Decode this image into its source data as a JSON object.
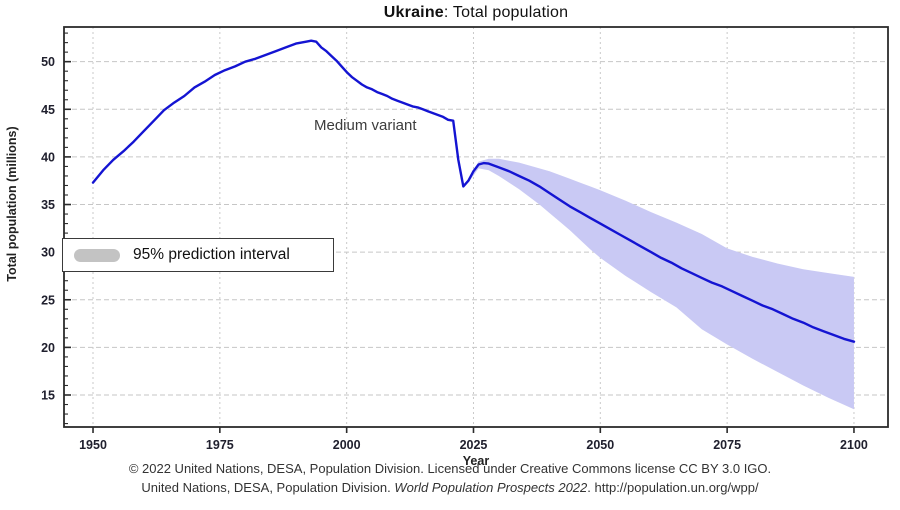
{
  "chart_data": {
    "type": "line",
    "title": {
      "bold": "Ukraine",
      "rest": ": Total population"
    },
    "xlabel": "Year",
    "ylabel": "Total population (millions)",
    "annotation": "Medium variant",
    "legend": {
      "label": "95% prediction interval",
      "swatch_color": "#c3c3c3",
      "position": "middle-left",
      "border": true
    },
    "grid": true,
    "x_axis": {
      "ticks": [
        1950,
        1975,
        2000,
        2025,
        2050,
        2075,
        2100
      ],
      "range": [
        1944.28,
        2106.71
      ],
      "minor_step": null
    },
    "y_axis": {
      "ticks": [
        15,
        20,
        25,
        30,
        35,
        40,
        45,
        50
      ],
      "range": [
        11.64,
        53.64
      ],
      "minor_step": 1
    },
    "series": [
      {
        "name": "Medium variant (total population, millions)",
        "points": [
          [
            1950,
            37.3
          ],
          [
            1952,
            38.6
          ],
          [
            1954,
            39.7
          ],
          [
            1956,
            40.6
          ],
          [
            1958,
            41.6
          ],
          [
            1960,
            42.7
          ],
          [
            1962,
            43.8
          ],
          [
            1964,
            44.9
          ],
          [
            1966,
            45.7
          ],
          [
            1968,
            46.4
          ],
          [
            1970,
            47.3
          ],
          [
            1972,
            47.9
          ],
          [
            1974,
            48.6
          ],
          [
            1976,
            49.1
          ],
          [
            1978,
            49.5
          ],
          [
            1980,
            50.0
          ],
          [
            1982,
            50.3
          ],
          [
            1984,
            50.7
          ],
          [
            1986,
            51.1
          ],
          [
            1988,
            51.5
          ],
          [
            1990,
            51.9
          ],
          [
            1992,
            52.1
          ],
          [
            1993,
            52.2
          ],
          [
            1994,
            52.1
          ],
          [
            1995,
            51.5
          ],
          [
            1996,
            51.1
          ],
          [
            1997,
            50.6
          ],
          [
            1998,
            50.1
          ],
          [
            1999,
            49.5
          ],
          [
            2000,
            48.9
          ],
          [
            2001,
            48.4
          ],
          [
            2002,
            48.0
          ],
          [
            2003,
            47.6
          ],
          [
            2004,
            47.3
          ],
          [
            2005,
            47.1
          ],
          [
            2006,
            46.8
          ],
          [
            2007,
            46.6
          ],
          [
            2008,
            46.4
          ],
          [
            2009,
            46.1
          ],
          [
            2010,
            45.9
          ],
          [
            2011,
            45.7
          ],
          [
            2012,
            45.5
          ],
          [
            2013,
            45.3
          ],
          [
            2014,
            45.2
          ],
          [
            2015,
            45.0
          ],
          [
            2016,
            44.8
          ],
          [
            2017,
            44.6
          ],
          [
            2018,
            44.4
          ],
          [
            2019,
            44.2
          ],
          [
            2020,
            43.9
          ],
          [
            2021,
            43.8
          ],
          [
            2022,
            39.7
          ],
          [
            2023,
            36.9
          ],
          [
            2024,
            37.5
          ],
          [
            2025,
            38.5
          ],
          [
            2026,
            39.2
          ],
          [
            2027,
            39.35
          ],
          [
            2028,
            39.3
          ],
          [
            2029,
            39.1
          ],
          [
            2030,
            38.9
          ],
          [
            2032,
            38.5
          ],
          [
            2034,
            38.0
          ],
          [
            2036,
            37.5
          ],
          [
            2038,
            36.9
          ],
          [
            2040,
            36.2
          ],
          [
            2042,
            35.5
          ],
          [
            2044,
            34.8
          ],
          [
            2046,
            34.2
          ],
          [
            2048,
            33.6
          ],
          [
            2050,
            33.0
          ],
          [
            2052,
            32.4
          ],
          [
            2054,
            31.8
          ],
          [
            2056,
            31.2
          ],
          [
            2058,
            30.6
          ],
          [
            2060,
            30.0
          ],
          [
            2062,
            29.4
          ],
          [
            2064,
            28.9
          ],
          [
            2066,
            28.3
          ],
          [
            2068,
            27.8
          ],
          [
            2070,
            27.3
          ],
          [
            2072,
            26.8
          ],
          [
            2074,
            26.4
          ],
          [
            2076,
            25.9
          ],
          [
            2078,
            25.4
          ],
          [
            2080,
            24.9
          ],
          [
            2082,
            24.4
          ],
          [
            2084,
            24.0
          ],
          [
            2086,
            23.5
          ],
          [
            2088,
            23.0
          ],
          [
            2090,
            22.6
          ],
          [
            2092,
            22.1
          ],
          [
            2094,
            21.7
          ],
          [
            2096,
            21.3
          ],
          [
            2098,
            20.9
          ],
          [
            2100,
            20.6
          ]
        ]
      }
    ],
    "band": {
      "name": "95% prediction interval",
      "x": [
        2024,
        2026,
        2028,
        2030,
        2032,
        2034,
        2036,
        2038,
        2040,
        2042,
        2044,
        2046,
        2048,
        2050,
        2055,
        2060,
        2065,
        2070,
        2075,
        2080,
        2085,
        2090,
        2095,
        2100
      ],
      "upper": [
        37.7,
        39.5,
        39.8,
        39.8,
        39.6,
        39.4,
        39.1,
        38.8,
        38.5,
        38.1,
        37.7,
        37.3,
        36.9,
        36.5,
        35.4,
        34.2,
        33.1,
        31.9,
        30.4,
        29.5,
        28.8,
        28.2,
        27.8,
        27.4
      ],
      "lower": [
        37.3,
        38.8,
        38.6,
        38.0,
        37.3,
        36.6,
        35.8,
        35.0,
        34.1,
        33.2,
        32.3,
        31.3,
        30.3,
        29.4,
        27.5,
        25.8,
        24.2,
        21.9,
        20.3,
        18.8,
        17.4,
        16.0,
        14.7,
        13.5
      ]
    },
    "colors": {
      "line": "#1414d2",
      "band": "#c9c9f4",
      "grid_h": "#c6c6c6",
      "grid_v": "#c9c9c9",
      "spine": "#2b2b2b",
      "tick_label": "#20202e"
    }
  },
  "footer": {
    "line1": "© 2022 United Nations, DESA, Population Division. Licensed under Creative Commons license CC BY 3.0 IGO.",
    "line2_pre": "United Nations, DESA, Population Division. ",
    "line2_italic": "World Population Prospects 2022",
    "line2_post": ". http://population.un.org/wpp/"
  }
}
